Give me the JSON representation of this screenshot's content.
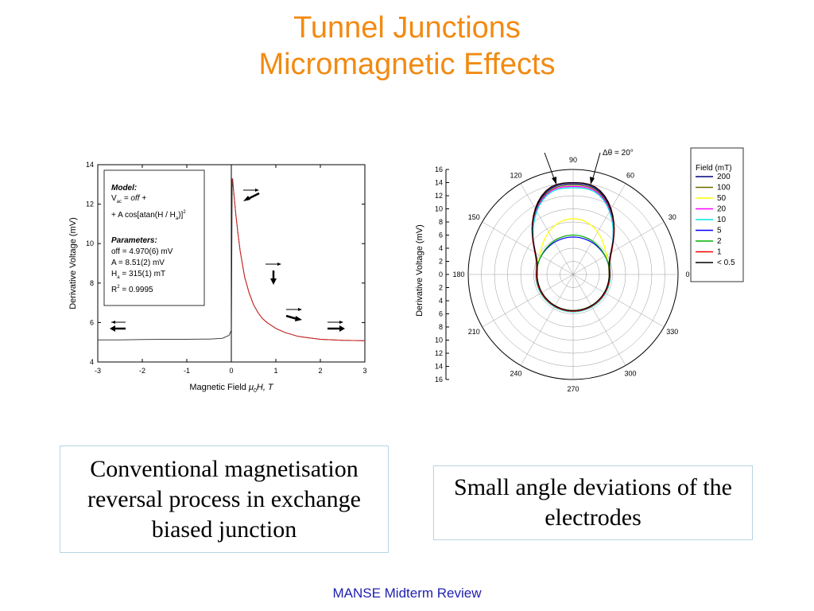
{
  "slide": {
    "title_line1": "Tunnel Junctions",
    "title_line2": "Micromagnetic Effects",
    "caption_left": "Conventional magnetisation reversal process in exchange biased junction",
    "caption_right": "Small angle deviations of the electrodes",
    "footer": "MANSE Midterm Review",
    "colors": {
      "title": "#f28a12",
      "footer": "#1f1fb0",
      "caption_border": "#b9d3e3"
    }
  },
  "chart_data": [
    {
      "type": "line",
      "xlabel_prefix": "Magnetic Field ",
      "xlabel_mu": "μ",
      "xlabel_sub": "0",
      "xlabel_suffix": "H, T",
      "ylabel": "Derivative Voltage (mV)",
      "xlim": [
        -3,
        3
      ],
      "ylim": [
        4,
        14
      ],
      "xticks": [
        -3,
        -2,
        -1,
        0,
        1,
        2,
        3
      ],
      "yticks": [
        4,
        6,
        8,
        10,
        12,
        14
      ],
      "series": [
        {
          "color": "#444444",
          "x": [
            -3,
            -2.5,
            -2,
            -1.5,
            -1,
            -0.5,
            -0.2,
            -0.05,
            0.0,
            0.02,
            0.05,
            0.1,
            0.15,
            0.2,
            0.3,
            0.4,
            0.5,
            0.6,
            0.7,
            0.8,
            1.0,
            1.2,
            1.5,
            2.0,
            2.5,
            3.0
          ],
          "y": [
            5.12,
            5.12,
            5.14,
            5.15,
            5.15,
            5.16,
            5.2,
            5.35,
            5.6,
            13.3,
            12.7,
            11.5,
            10.5,
            9.6,
            8.3,
            7.5,
            6.9,
            6.5,
            6.2,
            6.0,
            5.7,
            5.5,
            5.3,
            5.15,
            5.1,
            5.08
          ]
        },
        {
          "color": "#d42020",
          "x": [
            0.03,
            0.05,
            0.1,
            0.15,
            0.2,
            0.3,
            0.4,
            0.5,
            0.6,
            0.7,
            0.8,
            1.0,
            1.2,
            1.5,
            2.0,
            2.5,
            3.0
          ],
          "y": [
            13.3,
            12.7,
            11.5,
            10.5,
            9.6,
            8.3,
            7.5,
            6.9,
            6.5,
            6.2,
            6.0,
            5.7,
            5.5,
            5.3,
            5.15,
            5.1,
            5.08
          ]
        }
      ],
      "annotation": {
        "model_title": "Model:",
        "model_line1_v": "V",
        "model_line1_sub": "ac",
        "model_line1_rest": " = off +",
        "model_line2_prefix": "+ A cos[atan(H / H",
        "model_line2_sub": "a",
        "model_line2_suffix": ")]",
        "model_line2_sup": "2",
        "params_title": "Parameters:",
        "param_off": "off = 4.970(6) mV",
        "param_A": "A = 8.51(2) mV",
        "param_Ha_prefix": "H",
        "param_Ha_sub": "a",
        "param_Ha_suffix": " = 315(1) mT",
        "param_R2_prefix": "R",
        "param_R2_sup": "2",
        "param_R2_suffix": " = 0.9995"
      }
    },
    {
      "type": "polar",
      "ylabel": "Derivative Voltage (mV)",
      "radial_ticks_upper": [
        0,
        2,
        4,
        6,
        8,
        10,
        12,
        14,
        16
      ],
      "radial_ticks_lower": [
        0,
        2,
        4,
        6,
        8,
        10,
        12,
        14,
        16
      ],
      "angle_labels": [
        "0",
        "30",
        "60",
        "90",
        "120",
        "150",
        "180",
        "210",
        "240",
        "270",
        "300",
        "330"
      ],
      "annotation": "Δθ = 20°",
      "legend_title": "Field (mT)",
      "legend_placement": "right",
      "series": [
        {
          "name": "200",
          "color": "#000080",
          "r0": 5.5,
          "r90": 14.6
        },
        {
          "name": "100",
          "color": "#6b6b00",
          "r0": 5.5,
          "r90": 14.4
        },
        {
          "name": "50",
          "color": "#ffff00",
          "r0": 5.5,
          "r90": 8.5
        },
        {
          "name": "20",
          "color": "#ff00ff",
          "r0": 5.6,
          "r90": 14.2
        },
        {
          "name": "10",
          "color": "#00e5e5",
          "r0": 5.7,
          "r90": 14.0
        },
        {
          "name": "5",
          "color": "#0000ff",
          "r0": 5.6,
          "r90": 5.7
        },
        {
          "name": "2",
          "color": "#00b000",
          "r0": 5.6,
          "r90": 6.0
        },
        {
          "name": "1",
          "color": "#ff0000",
          "r0": 5.6,
          "r90": 14.8
        },
        {
          "name": "< 0.5",
          "color": "#000000",
          "r0": 5.5,
          "r90": 14.8
        }
      ]
    }
  ]
}
